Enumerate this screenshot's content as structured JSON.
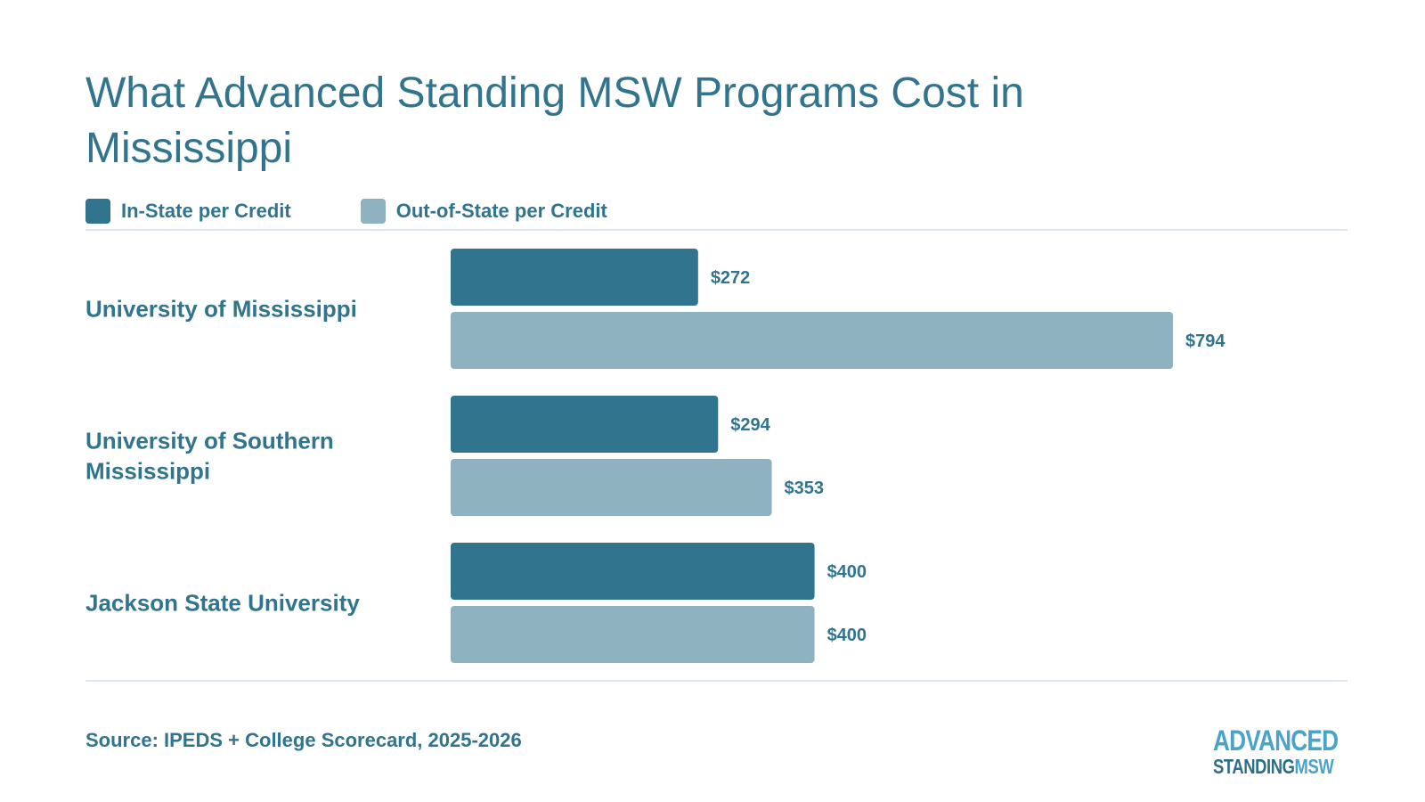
{
  "title": "What Advanced Standing MSW Programs Cost in Mississippi",
  "legend": {
    "in_state": "In-State per Credit",
    "out_state": "Out-of-State per Credit"
  },
  "colors": {
    "in_state": "#31748e",
    "out_state": "#8fb2c0",
    "text": "#31748e",
    "rule": "#dde7ec"
  },
  "chart_data": {
    "type": "bar",
    "orientation": "horizontal",
    "categories": [
      "University of Mississippi",
      "University of Southern Mississippi",
      "Jackson State University"
    ],
    "series": [
      {
        "name": "In-State per Credit",
        "values": [
          272,
          294,
          400
        ],
        "labels": [
          "$272",
          "$294",
          "$400"
        ]
      },
      {
        "name": "Out-of-State per Credit",
        "values": [
          794,
          353,
          400
        ],
        "labels": [
          "$794",
          "$353",
          "$400"
        ]
      }
    ],
    "xlim": [
      0,
      794
    ],
    "grid": false,
    "legend_position": "top-left"
  },
  "source": "Source: IPEDS + College Scorecard, 2025-2026",
  "logo": {
    "line1": "ADVANCED",
    "line2a": "STANDING",
    "line2b": "MSW"
  }
}
